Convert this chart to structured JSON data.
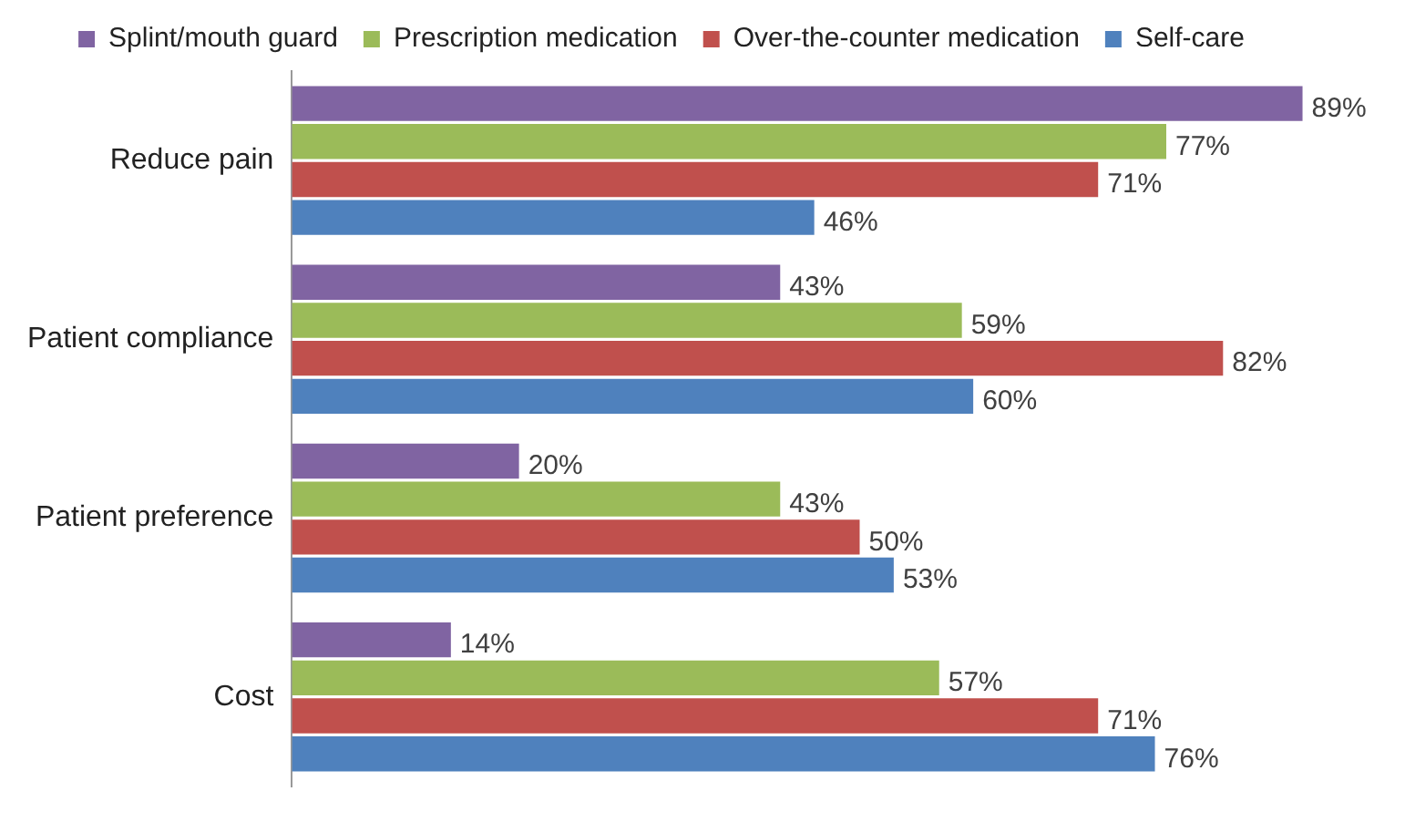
{
  "chart_data": {
    "type": "bar",
    "orientation": "horizontal",
    "categories": [
      "Reduce pain",
      "Patient compliance",
      "Patient preference",
      "Cost"
    ],
    "series": [
      {
        "name": "Splint/mouth guard",
        "color": "#8064a2",
        "values": [
          89,
          43,
          20,
          14
        ],
        "value_labels": [
          "89%",
          "43%",
          "20%",
          "14%"
        ]
      },
      {
        "name": "Prescription medication",
        "color": "#9bbb59",
        "values": [
          77,
          59,
          43,
          57
        ],
        "value_labels": [
          "77%",
          "59%",
          "43%",
          "57%"
        ]
      },
      {
        "name": "Over-the-counter medication",
        "color": "#c0504d",
        "values": [
          71,
          82,
          50,
          71
        ],
        "value_labels": [
          "71%",
          "82%",
          "50%",
          "71%"
        ]
      },
      {
        "name": "Self-care",
        "color": "#4f81bd",
        "values": [
          46,
          60,
          53,
          76
        ],
        "value_labels": [
          "46%",
          "60%",
          "53%",
          "76%"
        ]
      }
    ],
    "legend": "top",
    "grid": false,
    "tick_labels": "y"
  }
}
